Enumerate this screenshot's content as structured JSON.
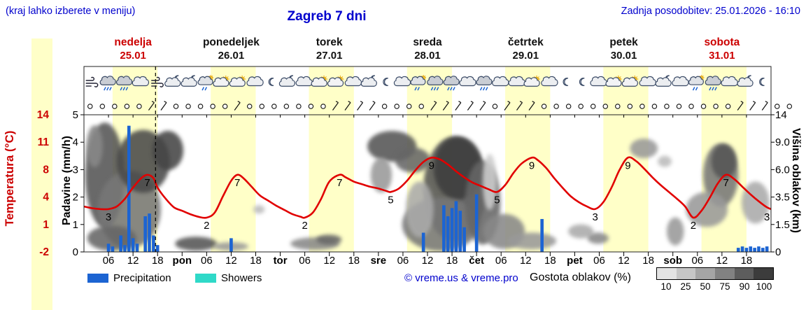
{
  "header": {
    "hint": "(kraj lahko izberete v meniju)",
    "title": "Zagreb 7 dni",
    "updated": "Zadnja posodobitev: 25.01.2026 - 16:10"
  },
  "days": [
    {
      "name": "nedelja",
      "date": "25.01",
      "red": true
    },
    {
      "name": "ponedeljek",
      "date": "26.01",
      "red": false
    },
    {
      "name": "torek",
      "date": "27.01",
      "red": false
    },
    {
      "name": "sreda",
      "date": "28.01",
      "red": false
    },
    {
      "name": "četrtek",
      "date": "29.01",
      "red": false
    },
    {
      "name": "petek",
      "date": "30.01",
      "red": false
    },
    {
      "name": "sobota",
      "date": "31.01",
      "red": true
    }
  ],
  "axes": {
    "temp_label": "Temperatura (°C)",
    "precip_label": "Padavine (mm/h)",
    "cloud_label": "Višina oblakov (km)",
    "temp_ticks": [
      "14",
      "11",
      "8",
      "4",
      "1",
      "-2"
    ],
    "precip_ticks": [
      "5",
      "4",
      "3",
      "2",
      "1",
      "0"
    ],
    "cloud_ticks": [
      "14",
      "9.0",
      "6.0",
      "3.5",
      "1.5",
      "0"
    ],
    "x_hours": [
      "06",
      "12",
      "18"
    ],
    "day_abbrs": [
      "pon",
      "tor",
      "sre",
      "čet",
      "pet",
      "sob"
    ]
  },
  "legend": {
    "precipitation": "Precipitation",
    "showers": "Showers",
    "credit": "© vreme.us & vreme.pro",
    "cloud_density_label": "Gostota oblakov (%)",
    "cloud_scale": {
      "values": [
        "10",
        "25",
        "50",
        "75",
        "90",
        "100"
      ],
      "colors": [
        "#e3e3e3",
        "#c6c6c6",
        "#a5a5a5",
        "#828282",
        "#5d5d5d",
        "#3c3c3c"
      ]
    }
  },
  "colors": {
    "accent_blue": "#0000cd",
    "red": "#cc0000",
    "temp_line": "#e10000",
    "precip_bar": "#1c64d2",
    "showers": "#2fd9c8",
    "day_band": "#ffffc8",
    "frame": "#222222"
  },
  "chart_data": {
    "type": "line",
    "title": "Zagreb 7 dni meteogram",
    "x_unit": "hours from 25.01 00:00",
    "x_range": [
      0,
      168
    ],
    "temp_axis_c": [
      -2,
      14
    ],
    "precip_axis_mmh": [
      0,
      5
    ],
    "current_time_t": 17.5,
    "daylight_bands": [
      [
        7,
        18
      ],
      [
        31,
        42
      ],
      [
        55,
        66
      ],
      [
        79,
        90
      ],
      [
        103,
        114
      ],
      [
        127,
        138
      ],
      [
        151,
        162
      ]
    ],
    "temperature": {
      "name": "Temperatura",
      "points": [
        [
          0,
          3.3
        ],
        [
          2,
          3.1
        ],
        [
          4,
          3.0
        ],
        [
          6,
          3.0
        ],
        [
          8,
          3.3
        ],
        [
          10,
          4.2
        ],
        [
          12,
          5.5
        ],
        [
          14,
          6.6
        ],
        [
          15.5,
          7.0
        ],
        [
          17,
          6.6
        ],
        [
          18,
          5.5
        ],
        [
          20,
          4.2
        ],
        [
          22,
          3.2
        ],
        [
          24,
          2.8
        ],
        [
          26,
          2.4
        ],
        [
          28,
          2.1
        ],
        [
          30,
          2.0
        ],
        [
          32,
          2.6
        ],
        [
          34,
          4.5
        ],
        [
          36,
          6.3
        ],
        [
          37.5,
          7.0
        ],
        [
          39,
          6.6
        ],
        [
          41,
          5.6
        ],
        [
          43,
          4.6
        ],
        [
          45,
          4.0
        ],
        [
          47,
          3.4
        ],
        [
          49,
          2.9
        ],
        [
          51,
          2.4
        ],
        [
          53,
          2.1
        ],
        [
          54,
          2.0
        ],
        [
          56,
          2.6
        ],
        [
          58,
          4.2
        ],
        [
          60,
          6.2
        ],
        [
          62.5,
          7.0
        ],
        [
          64,
          6.7
        ],
        [
          66,
          6.2
        ],
        [
          68,
          5.9
        ],
        [
          70,
          5.6
        ],
        [
          72,
          5.4
        ],
        [
          74,
          5.1
        ],
        [
          75,
          5.0
        ],
        [
          77,
          5.4
        ],
        [
          79,
          6.3
        ],
        [
          81,
          7.5
        ],
        [
          83,
          8.5
        ],
        [
          85,
          9.0
        ],
        [
          87,
          8.8
        ],
        [
          89,
          8.2
        ],
        [
          91,
          7.4
        ],
        [
          93,
          6.7
        ],
        [
          95,
          6.1
        ],
        [
          97,
          5.7
        ],
        [
          99,
          5.3
        ],
        [
          101,
          5.0
        ],
        [
          103,
          5.8
        ],
        [
          105,
          7.2
        ],
        [
          107,
          8.3
        ],
        [
          109.5,
          9.0
        ],
        [
          111,
          8.7
        ],
        [
          113,
          7.8
        ],
        [
          115,
          6.6
        ],
        [
          117,
          5.5
        ],
        [
          119,
          4.5
        ],
        [
          121,
          3.8
        ],
        [
          123,
          3.3
        ],
        [
          125,
          3.0
        ],
        [
          127,
          3.8
        ],
        [
          129,
          5.5
        ],
        [
          131,
          7.6
        ],
        [
          133,
          9.0
        ],
        [
          135,
          8.6
        ],
        [
          137,
          7.7
        ],
        [
          139,
          6.7
        ],
        [
          141,
          5.8
        ],
        [
          143,
          5.0
        ],
        [
          145,
          4.2
        ],
        [
          147,
          3.3
        ],
        [
          149,
          2.0
        ],
        [
          151,
          2.8
        ],
        [
          153,
          4.3
        ],
        [
          155,
          6.0
        ],
        [
          157,
          7.0
        ],
        [
          159,
          6.5
        ],
        [
          161,
          5.6
        ],
        [
          163,
          4.7
        ],
        [
          165,
          3.9
        ],
        [
          167,
          3.2
        ],
        [
          168,
          3.0
        ]
      ]
    },
    "temp_point_labels": [
      {
        "t": 6,
        "v": 3
      },
      {
        "t": 15.5,
        "v": 7
      },
      {
        "t": 30,
        "v": 2
      },
      {
        "t": 37.5,
        "v": 7
      },
      {
        "t": 54,
        "v": 2
      },
      {
        "t": 62.5,
        "v": 7
      },
      {
        "t": 75,
        "v": 5
      },
      {
        "t": 85,
        "v": 9
      },
      {
        "t": 101,
        "v": 5
      },
      {
        "t": 109.5,
        "v": 9
      },
      {
        "t": 125,
        "v": 3
      },
      {
        "t": 133,
        "v": 9
      },
      {
        "t": 149,
        "v": 2
      },
      {
        "t": 157,
        "v": 7
      },
      {
        "t": 167,
        "v": 3
      }
    ],
    "precipitation_bars": [
      [
        6,
        0.3
      ],
      [
        7,
        0.2
      ],
      [
        9,
        0.6
      ],
      [
        10,
        0.25
      ],
      [
        11,
        4.6
      ],
      [
        12,
        0.5
      ],
      [
        13,
        0.3
      ],
      [
        15,
        1.3
      ],
      [
        16,
        1.4
      ],
      [
        17,
        0.6
      ],
      [
        18,
        0.25
      ],
      [
        36,
        0.5
      ],
      [
        83,
        0.7
      ],
      [
        88,
        1.7
      ],
      [
        89,
        1.3
      ],
      [
        90,
        1.6
      ],
      [
        91,
        1.85
      ],
      [
        92,
        1.5
      ],
      [
        93,
        0.9
      ],
      [
        96,
        2.1
      ],
      [
        112,
        1.2
      ],
      [
        160,
        0.15
      ],
      [
        161,
        0.2
      ],
      [
        162,
        0.15
      ],
      [
        163,
        0.2
      ],
      [
        164,
        0.15
      ],
      [
        165,
        0.2
      ],
      [
        166,
        0.15
      ],
      [
        167,
        0.2
      ]
    ],
    "cloud_blobs": [
      [
        5.1,
        0.56,
        4.8,
        75,
        "#555555"
      ],
      [
        11.1,
        0.31,
        7.7,
        55,
        "#777777"
      ],
      [
        14.5,
        0.66,
        6.5,
        45,
        "#4a4a4a"
      ],
      [
        20.5,
        0.74,
        3.8,
        28,
        "#444444"
      ],
      [
        6.8,
        0.1,
        6.0,
        18,
        "#666666"
      ],
      [
        2.6,
        0.77,
        2.0,
        30,
        "#888888"
      ],
      [
        27.4,
        0.06,
        5.1,
        10,
        "#555555"
      ],
      [
        35.9,
        0.04,
        4.3,
        6,
        "#999999"
      ],
      [
        42.8,
        0.31,
        1.4,
        6,
        "#bbbbbb"
      ],
      [
        56.5,
        0.06,
        6.0,
        9,
        "#888888"
      ],
      [
        59.9,
        0.09,
        3.1,
        7,
        "#666666"
      ],
      [
        75.3,
        0.77,
        6.0,
        22,
        "#555555"
      ],
      [
        80.4,
        0.67,
        4.3,
        18,
        "#666666"
      ],
      [
        72.7,
        0.56,
        2.6,
        25,
        "#999999"
      ],
      [
        90.7,
        0.46,
        7.7,
        75,
        "#555555"
      ],
      [
        91.5,
        0.61,
        6.0,
        45,
        "#3d3d3d"
      ],
      [
        87.2,
        0.2,
        9.4,
        38,
        "#777777"
      ],
      [
        97.5,
        0.36,
        4.3,
        60,
        "#666666"
      ],
      [
        82.1,
        0.31,
        3.4,
        40,
        "#aaaaaa"
      ],
      [
        102.7,
        0.15,
        5.1,
        25,
        "#888888"
      ],
      [
        109.5,
        0.08,
        6.0,
        12,
        "#999999"
      ],
      [
        99.2,
        0.51,
        1.7,
        40,
        "#cccccc"
      ],
      [
        121.5,
        0.15,
        3.1,
        10,
        "#aaaaaa"
      ],
      [
        125.7,
        0.1,
        2.6,
        8,
        "#888888"
      ],
      [
        136.9,
        0.755,
        3.4,
        14,
        "#999999"
      ],
      [
        142.0,
        0.66,
        1.7,
        8,
        "#bbbbbb"
      ],
      [
        155.7,
        0.56,
        4.3,
        45,
        "#777777"
      ],
      [
        156.5,
        0.66,
        3.1,
        25,
        "#555555"
      ],
      [
        152.3,
        0.31,
        5.1,
        25,
        "#999999"
      ],
      [
        164.2,
        0.36,
        3.4,
        30,
        "#aaaaaa"
      ],
      [
        144.6,
        0.15,
        2.1,
        20,
        "#999999"
      ]
    ],
    "weather_icons": [
      [
        "wind",
        "rain",
        "rain",
        "cloud",
        "wind",
        "cloud-moon"
      ],
      [
        "cloud-moon",
        "showers",
        "sun-cloud",
        "sun-cloud",
        "cloud",
        "moon"
      ],
      [
        "cloud-moon",
        "cloud",
        "sun-cloud",
        "sun-cloud",
        "cloud",
        "cloud-moon"
      ],
      [
        "moon",
        "cloud",
        "showers",
        "rain",
        "rain",
        "cloud"
      ],
      [
        "rain",
        "cloud",
        "cloud",
        "sun-cloud",
        "cloud",
        "moon"
      ],
      [
        "moon",
        "cloud",
        "sun-cloud",
        "sun-cloud",
        "cloud",
        "cloud-moon"
      ],
      [
        "cloud",
        "showers",
        "rain",
        "cloud",
        "cloud-moon",
        "moon"
      ]
    ],
    "wind_slots": "ooooobbooooobooooooobbbboooobbbbbobbboooooooooooooooobbboo"
  }
}
